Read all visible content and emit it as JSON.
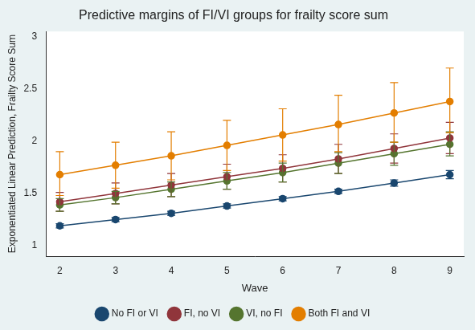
{
  "chart_data": {
    "type": "line",
    "title": "Predictive margins of FI/VI groups for frailty score sum",
    "x_label": "Wave",
    "y_label": "Exponentiated Linear Prediction, Frailty Score Sum",
    "x": [
      2,
      3,
      4,
      5,
      6,
      7,
      8,
      9
    ],
    "xlim": [
      1.75,
      9.25
    ],
    "xticks": [
      2,
      3,
      4,
      5,
      6,
      7,
      8,
      9
    ],
    "ylim": [
      0.9,
      3.05
    ],
    "yticks": [
      1,
      1.5,
      2,
      2.5,
      3
    ],
    "grid": false,
    "legend": "bottom",
    "marker": "circle",
    "series": [
      {
        "name": "No FI or VI",
        "color": "#1a476f",
        "values": [
          1.19,
          1.25,
          1.31,
          1.38,
          1.45,
          1.52,
          1.6,
          1.68
        ],
        "lower": [
          1.17,
          1.23,
          1.29,
          1.36,
          1.43,
          1.5,
          1.57,
          1.64
        ],
        "upper": [
          1.21,
          1.27,
          1.33,
          1.4,
          1.47,
          1.54,
          1.63,
          1.72
        ]
      },
      {
        "name": "FI, no VI",
        "color": "#90353b",
        "values": [
          1.42,
          1.5,
          1.58,
          1.66,
          1.74,
          1.83,
          1.93,
          2.03
        ],
        "lower": [
          1.33,
          1.4,
          1.47,
          1.54,
          1.61,
          1.69,
          1.79,
          1.88
        ],
        "upper": [
          1.51,
          1.6,
          1.69,
          1.78,
          1.87,
          1.97,
          2.07,
          2.18
        ]
      },
      {
        "name": "VI, no FI",
        "color": "#55752f",
        "values": [
          1.39,
          1.46,
          1.54,
          1.62,
          1.7,
          1.79,
          1.88,
          1.97
        ],
        "lower": [
          1.33,
          1.4,
          1.47,
          1.54,
          1.61,
          1.69,
          1.77,
          1.86
        ],
        "upper": [
          1.45,
          1.52,
          1.61,
          1.7,
          1.79,
          1.89,
          1.99,
          2.09
        ]
      },
      {
        "name": "Both FI and VI",
        "color": "#e37e00",
        "values": [
          1.68,
          1.77,
          1.86,
          1.96,
          2.06,
          2.16,
          2.27,
          2.38
        ],
        "lower": [
          1.48,
          1.55,
          1.63,
          1.72,
          1.81,
          1.9,
          1.99,
          2.08
        ],
        "upper": [
          1.9,
          1.99,
          2.09,
          2.2,
          2.31,
          2.44,
          2.56,
          2.7
        ]
      }
    ]
  }
}
